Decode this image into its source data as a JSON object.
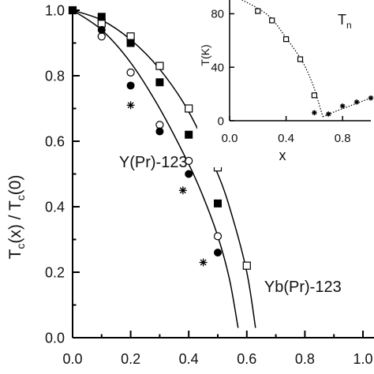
{
  "chart_data": [
    {
      "type": "scatter",
      "ylabel": "T_c(x) / T_c(0)",
      "ylabel_main": "T",
      "ylabel_sub1": "c",
      "ylabel_mid": "(x) / T",
      "ylabel_sub2": "c",
      "ylabel_end": "(0)",
      "xlim": [
        0.0,
        1.0
      ],
      "ylim": [
        0.0,
        1.0
      ],
      "x_ticks": [
        0.0,
        0.2,
        0.4,
        0.6,
        0.8,
        1.0
      ],
      "x_tick_labels": [
        "0.0",
        "0.2",
        "0.4",
        "0.6",
        "0.8",
        "1.0"
      ],
      "y_ticks": [
        0.0,
        0.2,
        0.4,
        0.6,
        0.8,
        1.0
      ],
      "y_tick_labels": [
        "0.0",
        "0.2",
        "0.4",
        "0.6",
        "0.8",
        "1.0"
      ],
      "grid": false,
      "annotations": [
        {
          "text": "Y(Pr)-123",
          "x": 0.16,
          "y": 0.52
        },
        {
          "text": "Yb(Pr)-123",
          "x": 0.66,
          "y": 0.14
        }
      ],
      "series": [
        {
          "marker": "open-square",
          "x": [
            0.0,
            0.1,
            0.2,
            0.3,
            0.4,
            0.5,
            0.6
          ],
          "y": [
            1.0,
            0.96,
            0.92,
            0.83,
            0.7,
            0.52,
            0.22
          ]
        },
        {
          "marker": "filled-square",
          "x": [
            0.0,
            0.1,
            0.2,
            0.3,
            0.4,
            0.5
          ],
          "y": [
            1.0,
            0.98,
            0.9,
            0.78,
            0.62,
            0.41
          ]
        },
        {
          "marker": "open-circle",
          "x": [
            0.0,
            0.1,
            0.2,
            0.3,
            0.4,
            0.5
          ],
          "y": [
            1.0,
            0.92,
            0.81,
            0.65,
            0.54,
            0.31
          ]
        },
        {
          "marker": "filled-circle",
          "x": [
            0.0,
            0.1,
            0.2,
            0.3,
            0.4,
            0.5
          ],
          "y": [
            1.0,
            0.94,
            0.77,
            0.63,
            0.5,
            0.26
          ]
        },
        {
          "marker": "asterisk",
          "x": [
            0.0,
            0.2,
            0.38,
            0.45
          ],
          "y": [
            1.0,
            0.71,
            0.45,
            0.23
          ]
        }
      ],
      "curves": [
        {
          "name": "",
          "x": [
            0.0,
            0.1,
            0.2,
            0.3,
            0.4,
            0.5,
            0.55,
            0.6,
            0.63
          ],
          "y": [
            1.0,
            0.97,
            0.91,
            0.82,
            0.69,
            0.5,
            0.37,
            0.2,
            0.03
          ]
        },
        {
          "name": "",
          "x": [
            0.0,
            0.1,
            0.2,
            0.3,
            0.4,
            0.45,
            0.5,
            0.54,
            0.57
          ],
          "y": [
            1.0,
            0.94,
            0.84,
            0.7,
            0.53,
            0.43,
            0.31,
            0.18,
            0.03
          ]
        }
      ]
    },
    {
      "type": "scatter",
      "xlabel": "x",
      "ylabel": "T(K)",
      "xlim": [
        0.0,
        1.0
      ],
      "ylim": [
        0,
        95
      ],
      "x_ticks": [
        0.0,
        0.4,
        0.8
      ],
      "x_tick_labels": [
        "0.0",
        "0.4",
        "0.8"
      ],
      "y_ticks": [
        0,
        40,
        80
      ],
      "y_tick_labels": [
        "0",
        "40",
        "80"
      ],
      "grid": false,
      "legend_label_main": "T",
      "legend_label_sub": "n",
      "series": [
        {
          "marker": "open-square",
          "x": [
            0.2,
            0.3,
            0.4,
            0.5,
            0.6
          ],
          "y": [
            82,
            75,
            61,
            46,
            19
          ]
        },
        {
          "marker": "asterisk",
          "x": [
            0.6,
            0.7,
            0.8,
            0.9,
            1.0
          ],
          "y": [
            6,
            5,
            11,
            14,
            17
          ]
        }
      ],
      "curves": [
        {
          "name": "",
          "style": "dotted",
          "x": [
            0.0,
            0.2,
            0.3,
            0.4,
            0.5,
            0.55,
            0.6,
            0.64,
            0.66
          ],
          "y": [
            95,
            84,
            76,
            62,
            47,
            37,
            24,
            10,
            3
          ]
        },
        {
          "name": "",
          "style": "dotted",
          "x": [
            0.66,
            0.75,
            0.85,
            0.95,
            1.0
          ],
          "y": [
            3,
            7,
            11,
            15,
            17
          ]
        }
      ]
    }
  ]
}
